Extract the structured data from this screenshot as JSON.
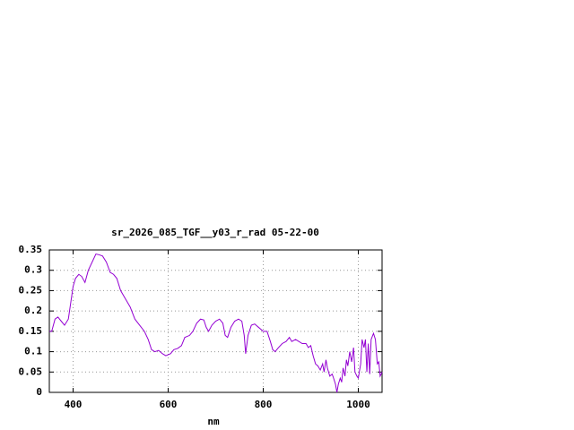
{
  "chart_data": {
    "type": "line",
    "title": "sr_2026_085_TGF__y03_r_rad 05-22-00",
    "x_label": "nm",
    "xlim": [
      350,
      1050
    ],
    "xticks": [
      400,
      600,
      800,
      1000
    ],
    "ylim": [
      0,
      0.35
    ],
    "yticks": [
      0,
      0.05,
      0.1,
      0.15,
      0.2,
      0.25,
      0.3,
      0.35
    ],
    "grid": true,
    "x": [
      350,
      355,
      362,
      368,
      375,
      382,
      390,
      395,
      400,
      405,
      412,
      418,
      425,
      432,
      440,
      448,
      455,
      462,
      470,
      478,
      485,
      492,
      500,
      510,
      520,
      530,
      540,
      550,
      558,
      565,
      572,
      580,
      588,
      595,
      605,
      612,
      620,
      628,
      635,
      645,
      652,
      660,
      668,
      675,
      680,
      685,
      692,
      700,
      708,
      715,
      720,
      725,
      732,
      740,
      748,
      755,
      760,
      763,
      768,
      775,
      782,
      790,
      800,
      808,
      815,
      820,
      825,
      832,
      840,
      848,
      855,
      860,
      868,
      875,
      882,
      890,
      895,
      900,
      905,
      910,
      915,
      920,
      925,
      928,
      932,
      935,
      940,
      945,
      948,
      952,
      955,
      958,
      962,
      965,
      968,
      972,
      975,
      978,
      982,
      986,
      990,
      993,
      997,
      1000,
      1005,
      1008,
      1012,
      1015,
      1018,
      1021,
      1024,
      1027,
      1032,
      1036,
      1040,
      1043,
      1046,
      1050
    ],
    "series": [
      {
        "color": "#9400d3",
        "values": [
          0.15,
          0.15,
          0.18,
          0.185,
          0.175,
          0.165,
          0.18,
          0.22,
          0.26,
          0.28,
          0.29,
          0.285,
          0.27,
          0.3,
          0.32,
          0.34,
          0.338,
          0.335,
          0.32,
          0.295,
          0.29,
          0.28,
          0.25,
          0.23,
          0.21,
          0.18,
          0.165,
          0.15,
          0.13,
          0.105,
          0.1,
          0.103,
          0.095,
          0.09,
          0.095,
          0.105,
          0.108,
          0.115,
          0.135,
          0.14,
          0.15,
          0.17,
          0.18,
          0.178,
          0.16,
          0.15,
          0.165,
          0.175,
          0.18,
          0.17,
          0.14,
          0.135,
          0.16,
          0.175,
          0.18,
          0.175,
          0.14,
          0.095,
          0.14,
          0.165,
          0.168,
          0.16,
          0.15,
          0.15,
          0.125,
          0.105,
          0.1,
          0.11,
          0.12,
          0.125,
          0.135,
          0.125,
          0.13,
          0.125,
          0.12,
          0.12,
          0.11,
          0.115,
          0.09,
          0.07,
          0.065,
          0.055,
          0.07,
          0.05,
          0.08,
          0.06,
          0.04,
          0.045,
          0.035,
          0.02,
          0.0,
          0.02,
          0.035,
          0.025,
          0.06,
          0.04,
          0.08,
          0.065,
          0.1,
          0.075,
          0.11,
          0.05,
          0.04,
          0.035,
          0.07,
          0.13,
          0.11,
          0.13,
          0.05,
          0.12,
          0.045,
          0.13,
          0.145,
          0.13,
          0.07,
          0.075,
          0.04,
          0.05
        ]
      }
    ]
  }
}
